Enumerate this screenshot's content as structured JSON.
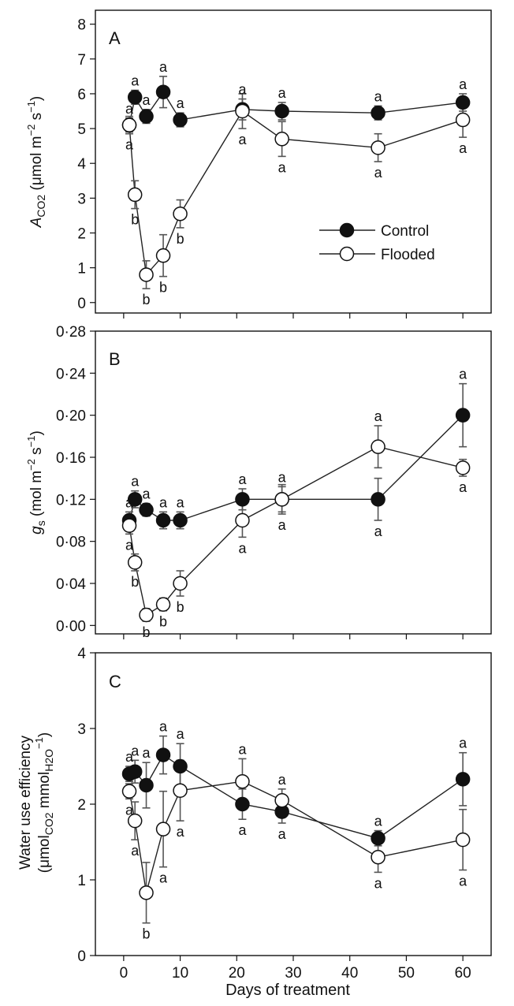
{
  "legend": {
    "control": "Control",
    "flooded": "Flooded"
  },
  "xlabel": "Days of treatment",
  "x_ticks": [
    "0",
    "10",
    "20",
    "30",
    "40",
    "50",
    "60"
  ],
  "colors": {
    "control_marker": "#111111",
    "flooded_marker": "#ffffff",
    "error_bar": "#555555"
  },
  "chart_data": [
    {
      "type": "line",
      "panel": "A",
      "ylabel": {
        "main": "A",
        "sub": "CO2",
        "rest": " (μmol m",
        "sup1": "−2",
        "mid": " s",
        "sup2": "−1",
        "end": ")"
      },
      "x": [
        1,
        2,
        4,
        7,
        10,
        21,
        28,
        45,
        60
      ],
      "xlim": [
        -5,
        65
      ],
      "ylim": [
        -0.3,
        8.4
      ],
      "y_ticks": [
        0,
        1,
        2,
        3,
        4,
        5,
        6,
        7,
        8
      ],
      "y_tick_labels": [
        "0",
        "1",
        "2",
        "3",
        "4",
        "5",
        "6",
        "7",
        "8"
      ],
      "series": [
        {
          "name": "Control",
          "values": [
            5.1,
            5.9,
            5.35,
            6.05,
            5.25,
            5.55,
            5.5,
            5.45,
            5.75
          ],
          "err": [
            0.2,
            0.2,
            0.2,
            0.45,
            0.2,
            0.3,
            0.25,
            0.2,
            0.25
          ],
          "labels": [
            "a",
            "a",
            "a",
            "a",
            "a",
            "a",
            "a",
            "a",
            "a"
          ]
        },
        {
          "name": "Flooded",
          "values": [
            5.1,
            3.1,
            0.8,
            1.35,
            2.55,
            5.5,
            4.7,
            4.45,
            5.25
          ],
          "err": [
            0.25,
            0.4,
            0.4,
            0.6,
            0.4,
            0.5,
            0.5,
            0.4,
            0.5
          ],
          "labels": [
            "a",
            "b",
            "b",
            "b",
            "b",
            "a",
            "a",
            "a",
            "a"
          ]
        }
      ]
    },
    {
      "type": "line",
      "panel": "B",
      "ylabel": {
        "main": "g",
        "sub": "s",
        "rest": " (mol m",
        "sup1": "−2",
        "mid": " s",
        "sup2": "−1",
        "end": ")"
      },
      "x": [
        1,
        2,
        4,
        7,
        10,
        21,
        28,
        45,
        60
      ],
      "xlim": [
        -5,
        65
      ],
      "ylim": [
        -0.008,
        0.28
      ],
      "y_ticks": [
        0,
        0.04,
        0.08,
        0.12,
        0.16,
        0.2,
        0.24,
        0.28
      ],
      "y_tick_labels": [
        "0·00",
        "0·04",
        "0·08",
        "0·12",
        "0·16",
        "0·20",
        "0·24",
        "0·28"
      ],
      "series": [
        {
          "name": "Control",
          "values": [
            0.1,
            0.12,
            0.11,
            0.1,
            0.1,
            0.12,
            0.12,
            0.12,
            0.2
          ],
          "err": [
            0.008,
            0.008,
            0.006,
            0.008,
            0.008,
            0.01,
            0.012,
            0.02,
            0.03
          ],
          "labels": [
            "a",
            "a",
            "a",
            "a",
            "a",
            "a",
            "a",
            "a",
            "a"
          ]
        },
        {
          "name": "Flooded",
          "values": [
            0.095,
            0.06,
            0.01,
            0.02,
            0.04,
            0.1,
            0.12,
            0.17,
            0.15
          ],
          "err": [
            0.008,
            0.008,
            0.006,
            0.006,
            0.012,
            0.016,
            0.014,
            0.02,
            0.008
          ],
          "labels": [
            "a",
            "b",
            "b",
            "b",
            "b",
            "a",
            "a",
            "a",
            "a"
          ]
        }
      ]
    },
    {
      "type": "line",
      "panel": "C",
      "ylabel": {
        "line1": "Water use efficiency",
        "open": "(μmol",
        "sub1": "CO2",
        "mid": " mmol",
        "sub2": "H2O",
        "sup": "−1",
        "close": ")"
      },
      "x": [
        1,
        2,
        4,
        7,
        10,
        21,
        28,
        45,
        60
      ],
      "xlim": [
        -5,
        65
      ],
      "ylim": [
        0,
        4
      ],
      "y_ticks": [
        0,
        1,
        2,
        3,
        4
      ],
      "y_tick_labels": [
        "0",
        "1",
        "2",
        "3",
        "4"
      ],
      "series": [
        {
          "name": "Control",
          "values": [
            2.4,
            2.43,
            2.25,
            2.65,
            2.5,
            2.0,
            1.9,
            1.55,
            2.33
          ],
          "err": [
            0.1,
            0.15,
            0.3,
            0.25,
            0.3,
            0.2,
            0.15,
            0.1,
            0.35
          ],
          "labels": [
            "a",
            "a",
            "a",
            "a",
            "a",
            "a",
            "a",
            "a",
            "a"
          ]
        },
        {
          "name": "Flooded",
          "values": [
            2.17,
            1.78,
            0.83,
            1.67,
            2.18,
            2.3,
            2.05,
            1.3,
            1.53
          ],
          "err": [
            0.1,
            0.25,
            0.4,
            0.5,
            0.4,
            0.3,
            0.15,
            0.2,
            0.4
          ],
          "labels": [
            "a",
            "a",
            "b",
            "a",
            "a",
            "a",
            "a",
            "a",
            "a"
          ]
        }
      ]
    }
  ]
}
